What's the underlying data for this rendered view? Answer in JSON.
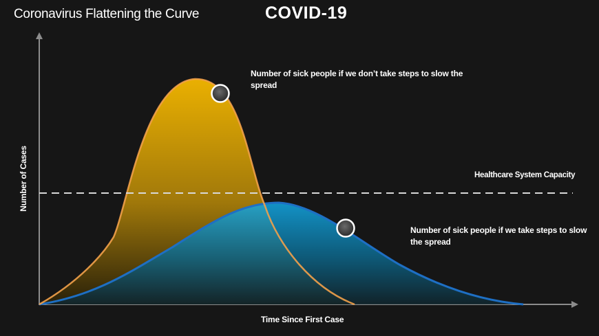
{
  "header": {
    "title": "Coronavirus Flattening the Curve",
    "main_title": "COVID-19"
  },
  "annotations": {
    "no_steps": "Number of sick people if we don’t take steps to slow the spread",
    "with_steps": "Number of sick people if we take steps to slow the spread",
    "capacity": "Healthcare System Capacity"
  },
  "axes": {
    "x_label": "Time Since First Case",
    "y_label": "Number of Cases"
  },
  "colors": {
    "background": "#161616",
    "high_curve": "#f5b800",
    "high_curve_stroke": "#f2a14a",
    "low_curve": "#12a8e6",
    "low_curve_stroke": "#1e6fc4",
    "capacity_line": "#d9d9d9",
    "axis": "#8c8c8c"
  }
}
